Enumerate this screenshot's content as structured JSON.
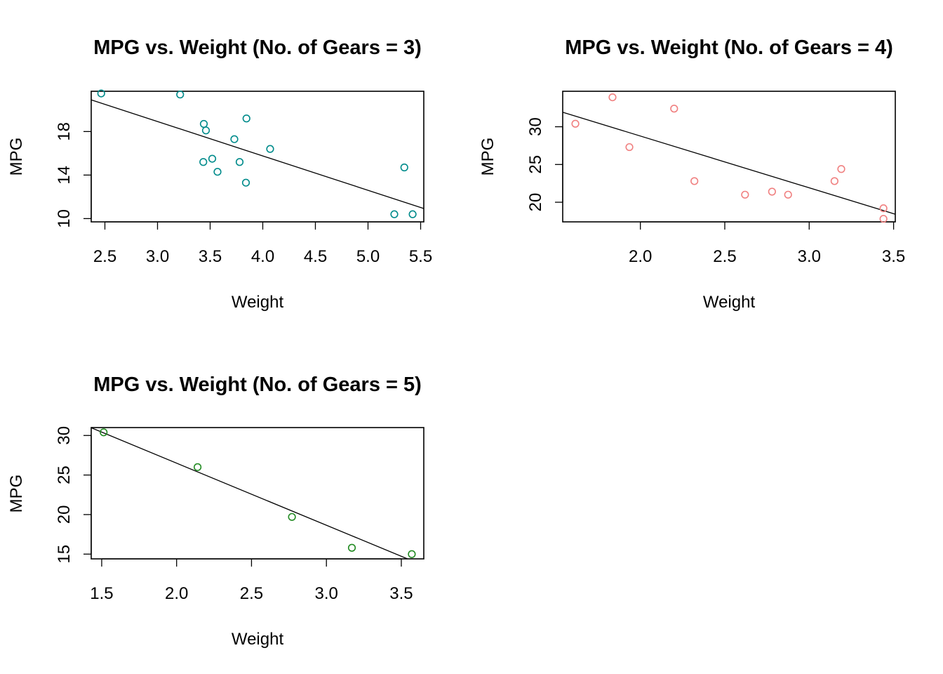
{
  "chart_data": [
    {
      "type": "scatter",
      "title": "MPG vs. Weight (No. of Gears = 3)",
      "xlabel": "Weight",
      "ylabel": "MPG",
      "xlim": [
        2.37,
        5.53
      ],
      "ylim": [
        9.7,
        21.7
      ],
      "xticks": [
        "2.5",
        "3.0",
        "3.5",
        "4.0",
        "4.5",
        "5.0",
        "5.5"
      ],
      "yticks": [
        "10",
        "14",
        "18"
      ],
      "color": "#008b8b",
      "points": [
        {
          "x": 2.465,
          "y": 21.5
        },
        {
          "x": 3.215,
          "y": 21.4
        },
        {
          "x": 3.44,
          "y": 18.7
        },
        {
          "x": 3.46,
          "y": 18.1
        },
        {
          "x": 3.57,
          "y": 14.3
        },
        {
          "x": 4.07,
          "y": 16.4
        },
        {
          "x": 3.73,
          "y": 17.3
        },
        {
          "x": 3.78,
          "y": 15.2
        },
        {
          "x": 5.25,
          "y": 10.4
        },
        {
          "x": 5.424,
          "y": 10.4
        },
        {
          "x": 5.345,
          "y": 14.7
        },
        {
          "x": 3.52,
          "y": 15.5
        },
        {
          "x": 3.435,
          "y": 15.2
        },
        {
          "x": 3.84,
          "y": 13.3
        },
        {
          "x": 3.845,
          "y": 19.2
        }
      ],
      "fit": {
        "intercept": 28.4,
        "slope": -3.16
      }
    },
    {
      "type": "scatter",
      "title": "MPG vs. Weight (No. of Gears = 4)",
      "xlabel": "Weight",
      "ylabel": "MPG",
      "xlim": [
        1.54,
        3.51
      ],
      "ylim": [
        17.4,
        34.7
      ],
      "xticks": [
        "2.0",
        "2.5",
        "3.0",
        "3.5"
      ],
      "yticks": [
        "20",
        "25",
        "30"
      ],
      "color": "#f08080",
      "points": [
        {
          "x": 2.62,
          "y": 21.0
        },
        {
          "x": 2.875,
          "y": 21.0
        },
        {
          "x": 2.32,
          "y": 22.8
        },
        {
          "x": 3.19,
          "y": 24.4
        },
        {
          "x": 3.15,
          "y": 22.8
        },
        {
          "x": 3.44,
          "y": 19.2
        },
        {
          "x": 3.44,
          "y": 17.8
        },
        {
          "x": 2.2,
          "y": 32.4
        },
        {
          "x": 1.615,
          "y": 30.4
        },
        {
          "x": 1.835,
          "y": 33.9
        },
        {
          "x": 1.935,
          "y": 27.3
        },
        {
          "x": 2.78,
          "y": 21.4
        }
      ],
      "fit": {
        "intercept": 42.49,
        "slope": -6.86
      }
    },
    {
      "type": "scatter",
      "title": "MPG vs. Weight (No. of Gears = 5)",
      "xlabel": "Weight",
      "ylabel": "MPG",
      "xlim": [
        1.43,
        3.65
      ],
      "ylim": [
        14.4,
        31.0
      ],
      "xticks": [
        "1.5",
        "2.0",
        "2.5",
        "3.0",
        "3.5"
      ],
      "yticks": [
        "15",
        "20",
        "25",
        "30"
      ],
      "color": "#228b22",
      "points": [
        {
          "x": 2.14,
          "y": 26.0
        },
        {
          "x": 1.513,
          "y": 30.4
        },
        {
          "x": 3.17,
          "y": 15.8
        },
        {
          "x": 2.77,
          "y": 19.7
        },
        {
          "x": 3.57,
          "y": 15.0
        }
      ],
      "fit": {
        "intercept": 42.2,
        "slope": -7.85
      }
    }
  ]
}
